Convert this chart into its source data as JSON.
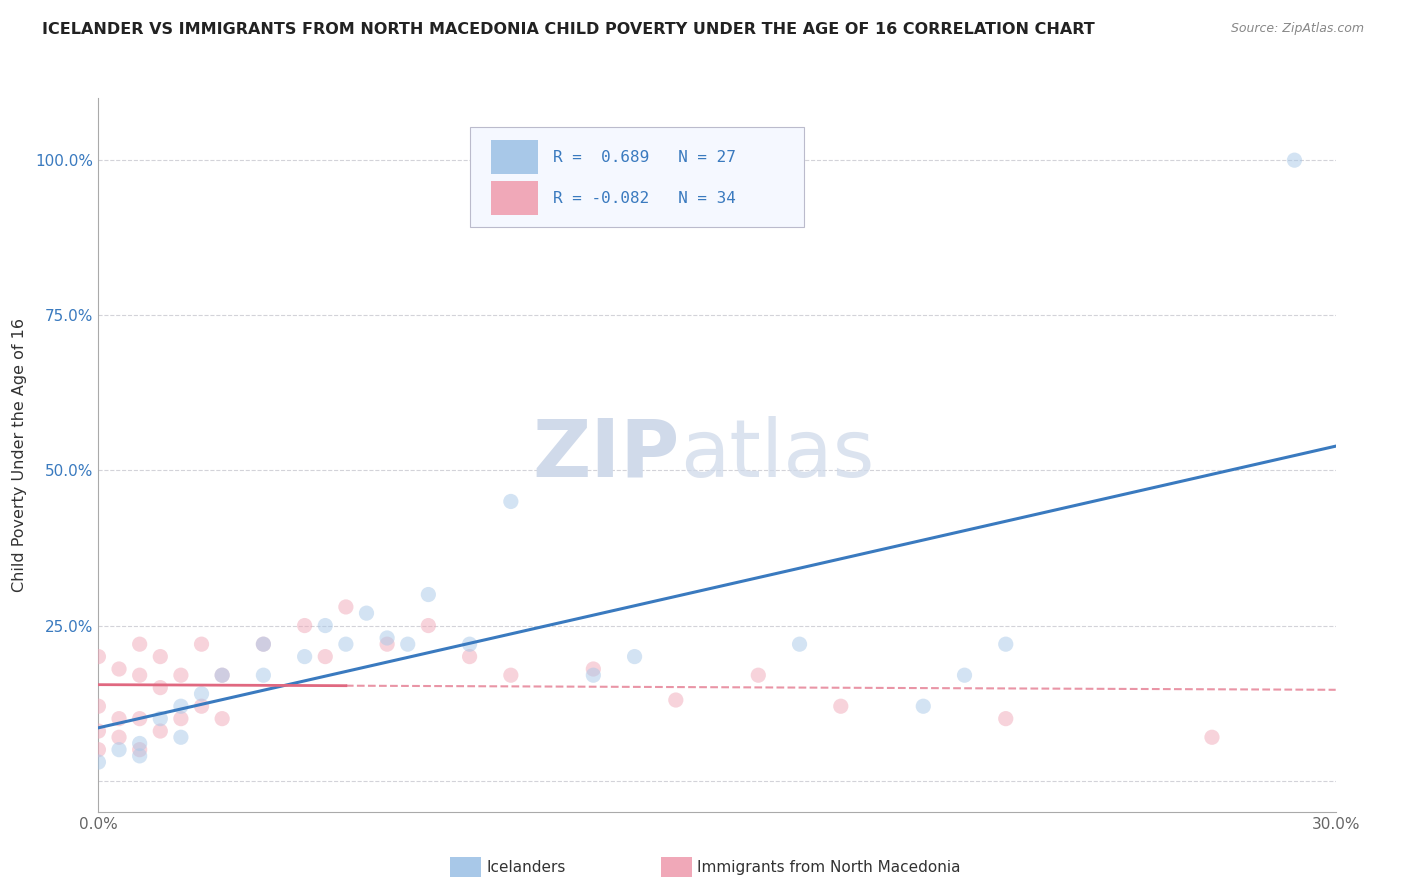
{
  "title": "ICELANDER VS IMMIGRANTS FROM NORTH MACEDONIA CHILD POVERTY UNDER THE AGE OF 16 CORRELATION CHART",
  "source": "Source: ZipAtlas.com",
  "ylabel": "Child Poverty Under the Age of 16",
  "r_blue": 0.689,
  "n_blue": 27,
  "r_pink": -0.082,
  "n_pink": 34,
  "xlim": [
    0.0,
    0.3
  ],
  "ylim": [
    -0.05,
    1.1
  ],
  "xticks": [
    0.0,
    0.05,
    0.1,
    0.15,
    0.2,
    0.25,
    0.3
  ],
  "xticklabels": [
    "0.0%",
    "",
    "",
    "",
    "",
    "",
    "30.0%"
  ],
  "ytick_positions": [
    0.0,
    0.25,
    0.5,
    0.75,
    1.0
  ],
  "yticklabels": [
    "",
    "25.0%",
    "50.0%",
    "75.0%",
    "100.0%"
  ],
  "background_color": "#ffffff",
  "plot_bg_color": "#ffffff",
  "grid_color": "#c8c8d0",
  "blue_color": "#a8c8e8",
  "blue_line_color": "#3a7abf",
  "pink_color": "#f0a8b8",
  "pink_line_color": "#e06880",
  "watermark_color": "#d0daea",
  "icelanders_x": [
    0.0,
    0.005,
    0.01,
    0.01,
    0.015,
    0.02,
    0.02,
    0.025,
    0.03,
    0.04,
    0.04,
    0.05,
    0.055,
    0.06,
    0.065,
    0.07,
    0.075,
    0.08,
    0.09,
    0.1,
    0.12,
    0.13,
    0.17,
    0.2,
    0.21,
    0.22,
    0.29
  ],
  "icelanders_y": [
    0.03,
    0.05,
    0.04,
    0.06,
    0.1,
    0.07,
    0.12,
    0.14,
    0.17,
    0.17,
    0.22,
    0.2,
    0.25,
    0.22,
    0.27,
    0.23,
    0.22,
    0.3,
    0.22,
    0.45,
    0.17,
    0.2,
    0.22,
    0.12,
    0.17,
    0.22,
    1.0
  ],
  "macedonia_x": [
    0.0,
    0.0,
    0.0,
    0.0,
    0.005,
    0.005,
    0.005,
    0.01,
    0.01,
    0.01,
    0.01,
    0.015,
    0.015,
    0.015,
    0.02,
    0.02,
    0.025,
    0.025,
    0.03,
    0.03,
    0.04,
    0.05,
    0.055,
    0.06,
    0.07,
    0.08,
    0.09,
    0.1,
    0.12,
    0.14,
    0.16,
    0.18,
    0.22,
    0.27
  ],
  "macedonia_y": [
    0.05,
    0.08,
    0.12,
    0.2,
    0.07,
    0.1,
    0.18,
    0.05,
    0.1,
    0.17,
    0.22,
    0.08,
    0.15,
    0.2,
    0.1,
    0.17,
    0.12,
    0.22,
    0.1,
    0.17,
    0.22,
    0.25,
    0.2,
    0.28,
    0.22,
    0.25,
    0.2,
    0.17,
    0.18,
    0.13,
    0.17,
    0.12,
    0.1,
    0.07
  ],
  "legend_label_blue": "Icelanders",
  "legend_label_pink": "Immigrants from North Macedonia",
  "marker_size": 120,
  "marker_alpha": 0.5
}
